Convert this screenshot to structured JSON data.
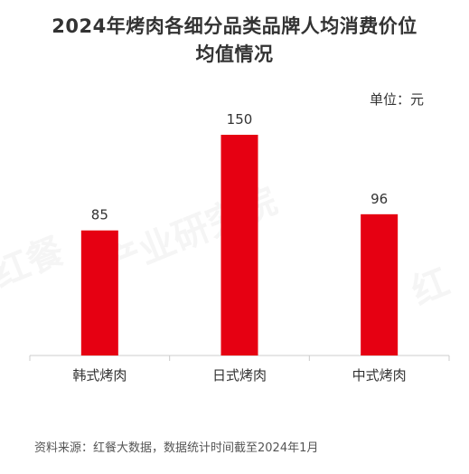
{
  "title_line1": "2024年烤肉各细分品类品牌人均消费价位",
  "title_line2": "均值情况",
  "unit_label": "单位：元",
  "source": "资料来源：红餐大数据，数据统计时间截至2024年1月",
  "watermark": "红餐产业研究院",
  "chart_data": {
    "type": "bar",
    "title": "2024年烤肉各细分品类品牌人均消费价位均值情况",
    "categories": [
      "韩式烤肉",
      "日式烤肉",
      "中式烤肉"
    ],
    "values": [
      85,
      150,
      96
    ],
    "ylim": [
      0,
      175
    ],
    "grid": false,
    "bar_color": "#e60012",
    "axis_color": "#cccccc"
  }
}
